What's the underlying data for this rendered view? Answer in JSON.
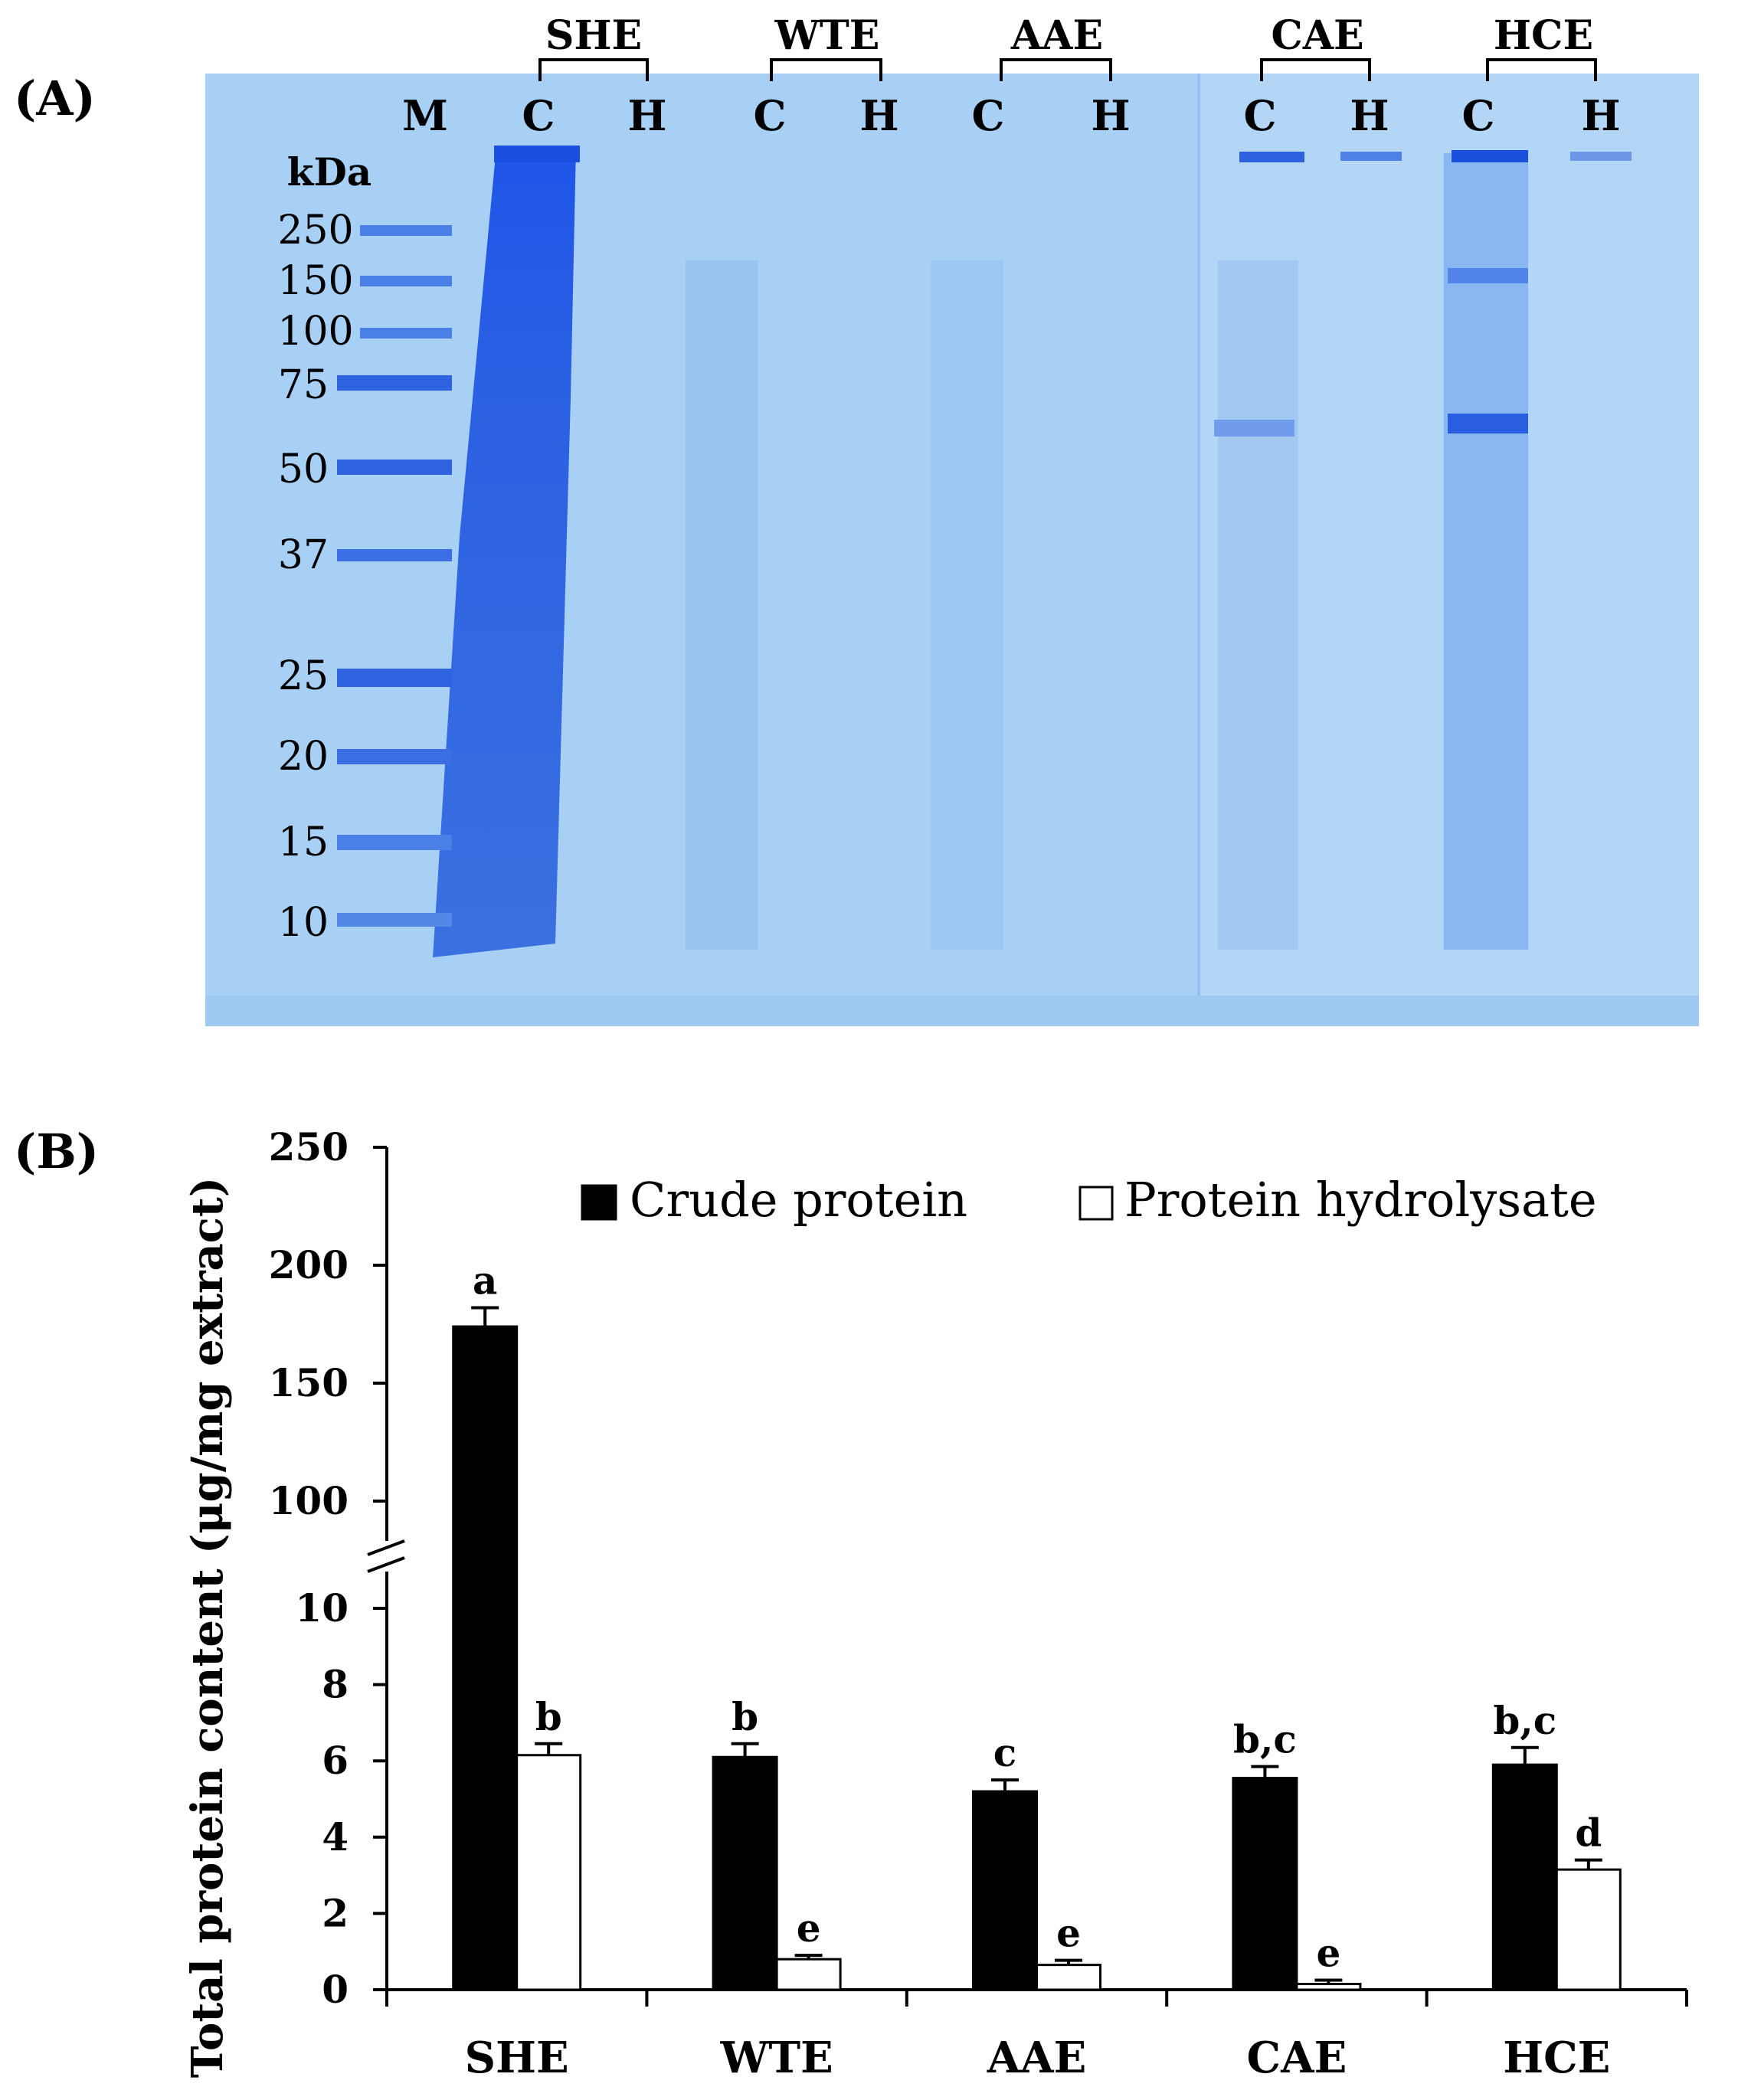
{
  "panel_a": {
    "label": "(A)",
    "group_labels": [
      "SHE",
      "WTE",
      "AAE",
      "CAE",
      "HCE"
    ],
    "lane_labels": [
      "M",
      "C",
      "H",
      "C",
      "H",
      "C",
      "H",
      "C",
      "H",
      "C",
      "H"
    ],
    "marker_unit": "kDa",
    "marker_values": [
      "250",
      "150",
      "100",
      "75",
      "50",
      "37",
      "25",
      "20",
      "15",
      "10"
    ],
    "colors": {
      "gel": "#a7cff5",
      "band": "#2f63e0",
      "smear": "#2a5fe4"
    }
  },
  "panel_b": {
    "label": "(B)"
  },
  "chart_data": {
    "type": "bar",
    "title": "",
    "xlabel": "",
    "ylabel": "Total protein content (μg/mg extract)",
    "categories": [
      "SHE",
      "WTE",
      "AAE",
      "CAE",
      "HCE"
    ],
    "axis_break": {
      "lower_range": [
        0,
        10
      ],
      "upper_range": [
        100,
        250
      ]
    },
    "ylim": [
      0,
      250
    ],
    "yticks_lower": [
      "0",
      "2",
      "4",
      "6",
      "8",
      "10"
    ],
    "yticks_upper": [
      "100",
      "150",
      "200",
      "250"
    ],
    "legend_placement": "top",
    "series": [
      {
        "name": "Crude protein",
        "color": "#000000",
        "values": [
          174,
          6.1,
          5.2,
          5.55,
          5.9
        ],
        "errors": [
          8,
          0.35,
          0.3,
          0.3,
          0.45
        ],
        "letters": [
          "a",
          "b",
          "c",
          "b,c",
          "b,c"
        ]
      },
      {
        "name": "Protein hydrolysate",
        "color": "#ffffff",
        "values": [
          6.15,
          0.8,
          0.65,
          0.15,
          3.15
        ],
        "errors": [
          0.3,
          0.1,
          0.12,
          0.1,
          0.25
        ],
        "letters": [
          "b",
          "e",
          "e",
          "e",
          "d"
        ]
      }
    ]
  }
}
